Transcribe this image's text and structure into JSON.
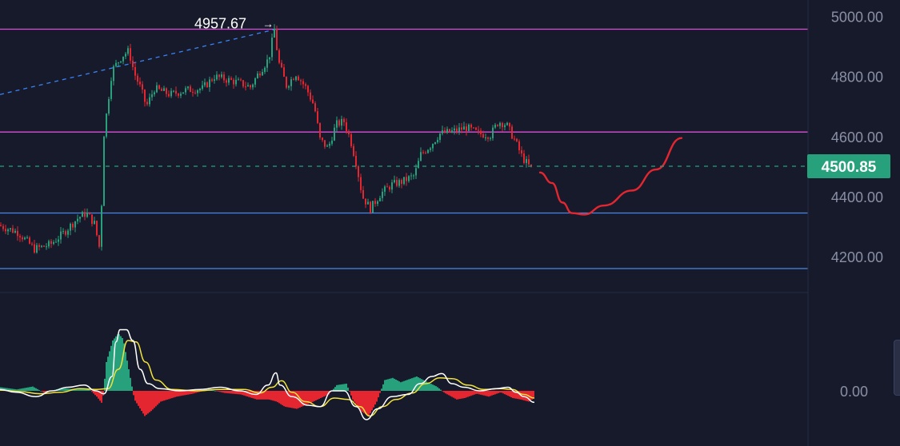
{
  "chart_data": [
    {
      "type": "candlestick",
      "panel": "price",
      "price_axis": {
        "ticks": [
          "5000.00",
          "4800.00",
          "4600.00",
          "4400.00",
          "4200.00"
        ],
        "tick_values": [
          5000,
          4800,
          4600,
          4400,
          4200
        ],
        "range": [
          4080,
          5055
        ]
      },
      "last_price": {
        "label": "4500.85",
        "value": 4500.85,
        "color": "#26a17b"
      },
      "high_annotation": {
        "label": "4957.67",
        "arrow": "→",
        "value": 4957.67
      },
      "horizontal_levels": [
        {
          "value": 4957.67,
          "color": "#d94fd4"
        },
        {
          "value": 4615,
          "color": "#d94fd4"
        },
        {
          "value": 4345,
          "color": "#4a86e8"
        },
        {
          "value": 4160,
          "color": "#4a86e8"
        }
      ],
      "dashed_trendline": {
        "color": "#3b82f6",
        "points": [
          [
            0,
            4740
          ],
          [
            345,
            4957.67
          ]
        ]
      },
      "projection_curve": {
        "color": "#e3262f",
        "points": [
          [
            675,
            4480
          ],
          [
            690,
            4445
          ],
          [
            703,
            4380
          ],
          [
            715,
            4345
          ],
          [
            730,
            4340
          ],
          [
            755,
            4370
          ],
          [
            790,
            4420
          ],
          [
            820,
            4490
          ],
          [
            852,
            4595
          ]
        ]
      },
      "price_path": [
        [
          0,
          4305
        ],
        [
          25,
          4280
        ],
        [
          45,
          4225
        ],
        [
          65,
          4240
        ],
        [
          80,
          4275
        ],
        [
          100,
          4330
        ],
        [
          110,
          4345
        ],
        [
          120,
          4310
        ],
        [
          127,
          4220
        ],
        [
          132,
          4610
        ],
        [
          142,
          4820
        ],
        [
          155,
          4870
        ],
        [
          163,
          4885
        ],
        [
          170,
          4810
        ],
        [
          178,
          4760
        ],
        [
          185,
          4700
        ],
        [
          195,
          4760
        ],
        [
          215,
          4740
        ],
        [
          235,
          4755
        ],
        [
          255,
          4760
        ],
        [
          270,
          4800
        ],
        [
          285,
          4790
        ],
        [
          300,
          4780
        ],
        [
          315,
          4765
        ],
        [
          325,
          4810
        ],
        [
          338,
          4860
        ],
        [
          345,
          4957.67
        ],
        [
          350,
          4850
        ],
        [
          360,
          4770
        ],
        [
          372,
          4810
        ],
        [
          385,
          4760
        ],
        [
          395,
          4700
        ],
        [
          402,
          4590
        ],
        [
          412,
          4560
        ],
        [
          422,
          4640
        ],
        [
          432,
          4650
        ],
        [
          440,
          4590
        ],
        [
          447,
          4515
        ],
        [
          455,
          4400
        ],
        [
          465,
          4360
        ],
        [
          478,
          4410
        ],
        [
          492,
          4440
        ],
        [
          505,
          4450
        ],
        [
          520,
          4470
        ],
        [
          528,
          4540
        ],
        [
          540,
          4570
        ],
        [
          552,
          4610
        ],
        [
          565,
          4615
        ],
        [
          585,
          4630
        ],
        [
          600,
          4610
        ],
        [
          615,
          4605
        ],
        [
          625,
          4650
        ],
        [
          635,
          4640
        ],
        [
          645,
          4590
        ],
        [
          655,
          4530
        ],
        [
          665,
          4495
        ]
      ],
      "candle_palette": {
        "up": "#26a17b",
        "down": "#e3262f"
      },
      "grid": false,
      "legend": "none"
    },
    {
      "type": "macd",
      "panel": "indicator",
      "zero_label": "0.00",
      "histogram_colors": {
        "positive": "#26a17b",
        "negative": "#e3262f"
      },
      "line_colors": {
        "macd": "#ffffff",
        "signal": "#f2e23a"
      },
      "histogram": [
        [
          0,
          5
        ],
        [
          20,
          2
        ],
        [
          40,
          6
        ],
        [
          55,
          -3
        ],
        [
          75,
          4
        ],
        [
          95,
          2
        ],
        [
          110,
          3
        ],
        [
          120,
          -8
        ],
        [
          127,
          -18
        ],
        [
          132,
          40
        ],
        [
          140,
          70
        ],
        [
          147,
          80
        ],
        [
          153,
          72
        ],
        [
          160,
          30
        ],
        [
          167,
          -12
        ],
        [
          180,
          -35
        ],
        [
          188,
          -28
        ],
        [
          200,
          -15
        ],
        [
          220,
          -8
        ],
        [
          240,
          -4
        ],
        [
          260,
          2
        ],
        [
          280,
          -3
        ],
        [
          300,
          -5
        ],
        [
          320,
          -12
        ],
        [
          335,
          -12
        ],
        [
          345,
          -15
        ],
        [
          355,
          -22
        ],
        [
          370,
          -25
        ],
        [
          385,
          -18
        ],
        [
          400,
          -10
        ],
        [
          410,
          -5
        ],
        [
          420,
          8
        ],
        [
          432,
          10
        ],
        [
          440,
          -12
        ],
        [
          450,
          -28
        ],
        [
          460,
          -35
        ],
        [
          470,
          -15
        ],
        [
          480,
          15
        ],
        [
          490,
          18
        ],
        [
          500,
          12
        ],
        [
          510,
          16
        ],
        [
          520,
          20
        ],
        [
          530,
          14
        ],
        [
          545,
          6
        ],
        [
          555,
          -3
        ],
        [
          570,
          -12
        ],
        [
          580,
          -10
        ],
        [
          595,
          -4
        ],
        [
          610,
          -8
        ],
        [
          625,
          -2
        ],
        [
          640,
          -10
        ],
        [
          650,
          -12
        ],
        [
          660,
          -15
        ],
        [
          667,
          -10
        ]
      ],
      "macd_line": [
        [
          0,
          2
        ],
        [
          20,
          -2
        ],
        [
          45,
          -8
        ],
        [
          65,
          0
        ],
        [
          85,
          5
        ],
        [
          105,
          8
        ],
        [
          120,
          0
        ],
        [
          130,
          -4
        ],
        [
          140,
          20
        ],
        [
          145,
          68
        ],
        [
          150,
          85
        ],
        [
          158,
          85
        ],
        [
          166,
          70
        ],
        [
          175,
          30
        ],
        [
          185,
          10
        ],
        [
          200,
          3
        ],
        [
          225,
          0
        ],
        [
          250,
          2
        ],
        [
          275,
          5
        ],
        [
          300,
          0
        ],
        [
          320,
          -5
        ],
        [
          335,
          8
        ],
        [
          345,
          25
        ],
        [
          350,
          8
        ],
        [
          365,
          -8
        ],
        [
          385,
          -20
        ],
        [
          400,
          -22
        ],
        [
          415,
          0
        ],
        [
          430,
          0
        ],
        [
          445,
          -22
        ],
        [
          458,
          -40
        ],
        [
          472,
          -25
        ],
        [
          490,
          -8
        ],
        [
          510,
          -5
        ],
        [
          525,
          10
        ],
        [
          540,
          20
        ],
        [
          552,
          24
        ],
        [
          565,
          10
        ],
        [
          580,
          5
        ],
        [
          600,
          0
        ],
        [
          620,
          3
        ],
        [
          635,
          5
        ],
        [
          645,
          -2
        ],
        [
          655,
          -8
        ],
        [
          668,
          -16
        ]
      ],
      "signal_line": [
        [
          0,
          1
        ],
        [
          25,
          -1
        ],
        [
          50,
          -4
        ],
        [
          75,
          -2
        ],
        [
          100,
          3
        ],
        [
          120,
          2
        ],
        [
          135,
          3
        ],
        [
          148,
          30
        ],
        [
          160,
          70
        ],
        [
          170,
          68
        ],
        [
          182,
          40
        ],
        [
          195,
          15
        ],
        [
          215,
          2
        ],
        [
          245,
          0
        ],
        [
          275,
          2
        ],
        [
          305,
          2
        ],
        [
          325,
          -3
        ],
        [
          340,
          5
        ],
        [
          352,
          14
        ],
        [
          365,
          -2
        ],
        [
          382,
          -15
        ],
        [
          400,
          -22
        ],
        [
          418,
          -10
        ],
        [
          435,
          -12
        ],
        [
          450,
          -22
        ],
        [
          462,
          -35
        ],
        [
          478,
          -22
        ],
        [
          495,
          -12
        ],
        [
          515,
          -3
        ],
        [
          532,
          10
        ],
        [
          550,
          18
        ],
        [
          565,
          17
        ],
        [
          585,
          8
        ],
        [
          605,
          2
        ],
        [
          625,
          3
        ],
        [
          640,
          2
        ],
        [
          655,
          -5
        ],
        [
          668,
          -10
        ]
      ]
    }
  ]
}
